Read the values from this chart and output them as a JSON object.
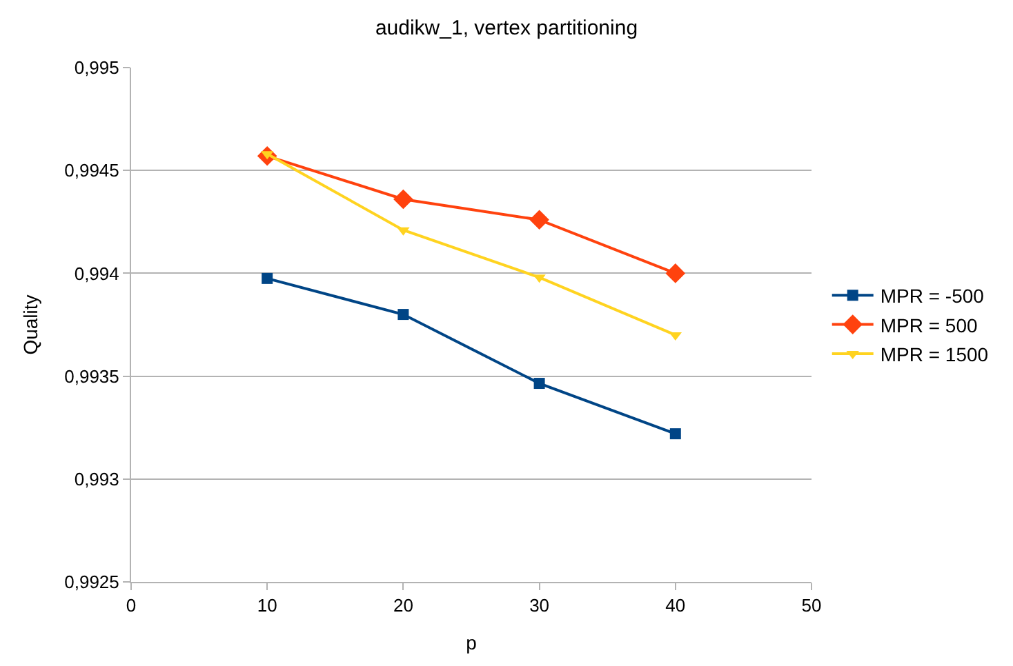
{
  "chart_data": {
    "type": "line",
    "title": "audikw_1, vertex partitioning",
    "xlabel": "p",
    "ylabel": "Quality",
    "x": [
      10,
      20,
      30,
      40
    ],
    "series": [
      {
        "name": "MPR = -500",
        "color": "#004586",
        "marker": "square",
        "values": [
          0.993975,
          0.9938,
          0.993465,
          0.99322
        ]
      },
      {
        "name": "MPR = 500",
        "color": "#ff420e",
        "marker": "diamond",
        "values": [
          0.99457,
          0.99436,
          0.99426,
          0.994
        ]
      },
      {
        "name": "MPR = 1500",
        "color": "#ffd320",
        "marker": "triangle",
        "values": [
          0.99458,
          0.99421,
          0.99398,
          0.9937
        ]
      }
    ],
    "xlim": [
      0,
      50
    ],
    "xticks": [
      0,
      10,
      20,
      30,
      40,
      50
    ],
    "ylim": [
      0.9925,
      0.995
    ],
    "yticks": [
      {
        "value": 0.9925,
        "label": "0,9925"
      },
      {
        "value": 0.993,
        "label": "0,993"
      },
      {
        "value": 0.9935,
        "label": "0,9935"
      },
      {
        "value": 0.994,
        "label": "0,994"
      },
      {
        "value": 0.9945,
        "label": "0,9945"
      },
      {
        "value": 0.995,
        "label": "0,995"
      }
    ],
    "grid": "y",
    "legend": "right",
    "line_style": "solid"
  }
}
